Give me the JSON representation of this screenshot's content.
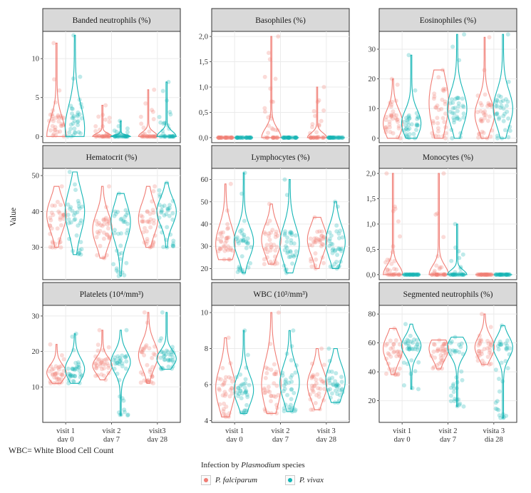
{
  "colors": {
    "falciparum": "#F07C74",
    "vivax": "#14B5B5",
    "strip_bg": "#D9D9D9",
    "panel_border": "#333333",
    "grid": "#EBEBEB"
  },
  "y_axis_label": "Value",
  "footnote": "WBC= White Blood Cell Count",
  "legend": {
    "title_prefix": "Infection by ",
    "title_italic": "Plasmodium",
    "title_suffix": " species",
    "items": [
      {
        "label": "P. falciparum",
        "color": "#F07C74"
      },
      {
        "label": "P. vivax",
        "color": "#14B5B5"
      }
    ]
  },
  "chart_data": [
    {
      "type": "violin",
      "title": "Banded neutrophils (%)",
      "ylim": [
        -0.8,
        13.5
      ],
      "yticks": [
        0,
        5,
        10
      ],
      "ytick_labels": [
        "0",
        "5",
        "10"
      ],
      "categories": [
        "visit 1\nday 0",
        "visit 2\nday 7",
        "visit3\nday 28"
      ],
      "series": [
        {
          "name": "P. falciparum",
          "stats": [
            {
              "min": 0,
              "q1": 0,
              "median": 0,
              "q3": 3,
              "max": 12
            },
            {
              "min": 0,
              "q1": 0,
              "median": 0,
              "q3": 0,
              "max": 4
            },
            {
              "min": 0,
              "q1": 0,
              "median": 0,
              "q3": 0,
              "max": 6
            }
          ]
        },
        {
          "name": "P. vivax",
          "stats": [
            {
              "min": 0,
              "q1": 0,
              "median": 1,
              "q3": 4,
              "max": 13
            },
            {
              "min": 0,
              "q1": 0,
              "median": 0,
              "q3": 0,
              "max": 2
            },
            {
              "min": 0,
              "q1": 0,
              "median": 0,
              "q3": 0,
              "max": 7
            }
          ]
        }
      ]
    },
    {
      "type": "violin",
      "title": "Basophiles (%)",
      "ylim": [
        -0.1,
        2.1
      ],
      "yticks": [
        0,
        0.5,
        1,
        1.5,
        2
      ],
      "ytick_labels": [
        "0,0",
        "0,5",
        "1,0",
        "1,5",
        "2,0"
      ],
      "categories": [
        "visit 1\nday 0",
        "visit 2\nday 7",
        "visit 3\nday 28"
      ],
      "series": [
        {
          "name": "P. falciparum",
          "stats": [
            {
              "min": 0,
              "q1": 0,
              "median": 0,
              "q3": 0,
              "max": 0
            },
            {
              "min": 0,
              "q1": 0,
              "median": 0,
              "q3": 0,
              "max": 2
            },
            {
              "min": 0,
              "q1": 0,
              "median": 0,
              "q3": 0,
              "max": 1
            }
          ]
        },
        {
          "name": "P. vivax",
          "stats": [
            {
              "min": 0,
              "q1": 0,
              "median": 0,
              "q3": 0,
              "max": 0
            },
            {
              "min": 0,
              "q1": 0,
              "median": 0,
              "q3": 0,
              "max": 0
            },
            {
              "min": 0,
              "q1": 0,
              "median": 0,
              "q3": 0,
              "max": 0
            }
          ]
        }
      ]
    },
    {
      "type": "violin",
      "title": "Eosinophiles (%)",
      "ylim": [
        -1.5,
        36
      ],
      "yticks": [
        0,
        10,
        20,
        30
      ],
      "ytick_labels": [
        "0",
        "10",
        "20",
        "30"
      ],
      "categories": [
        "visit 1\nday 0",
        "visit 2\nday 7",
        "visita 3\ndia 28"
      ],
      "series": [
        {
          "name": "P. falciparum",
          "stats": [
            {
              "min": 0,
              "q1": 2,
              "median": 5,
              "q3": 8,
              "max": 20
            },
            {
              "min": 0,
              "q1": 5,
              "median": 12,
              "q3": 17,
              "max": 23
            },
            {
              "min": 0,
              "q1": 5,
              "median": 8,
              "q3": 12,
              "max": 34
            }
          ]
        },
        {
          "name": "P. vivax",
          "stats": [
            {
              "min": 0,
              "q1": 2,
              "median": 5,
              "q3": 8,
              "max": 28
            },
            {
              "min": 0,
              "q1": 6,
              "median": 10,
              "q3": 14,
              "max": 35
            },
            {
              "min": 0,
              "q1": 6,
              "median": 10,
              "q3": 14,
              "max": 35
            }
          ]
        }
      ]
    },
    {
      "type": "violin",
      "title": "Hematocrit (%)",
      "ylim": [
        21,
        52
      ],
      "yticks": [
        30,
        40,
        50
      ],
      "ytick_labels": [
        "30",
        "40",
        "50"
      ],
      "categories": [
        "visit 1\nday 0",
        "visit 2\nday 7",
        "visit3\nday 28"
      ],
      "series": [
        {
          "name": "P. falciparum",
          "stats": [
            {
              "min": 30,
              "q1": 36,
              "median": 39,
              "q3": 42,
              "max": 47
            },
            {
              "min": 27,
              "q1": 32,
              "median": 35,
              "q3": 38,
              "max": 47
            },
            {
              "min": 30,
              "q1": 35,
              "median": 38,
              "q3": 41,
              "max": 47
            }
          ]
        },
        {
          "name": "P. vivax",
          "stats": [
            {
              "min": 28,
              "q1": 36,
              "median": 40,
              "q3": 44,
              "max": 51
            },
            {
              "min": 22,
              "q1": 33,
              "median": 37,
              "q3": 40,
              "max": 45
            },
            {
              "min": 30,
              "q1": 37,
              "median": 40,
              "q3": 42,
              "max": 48
            }
          ]
        }
      ]
    },
    {
      "type": "violin",
      "title": "Lymphocytes (%)",
      "ylim": [
        15,
        65
      ],
      "yticks": [
        20,
        30,
        40,
        50,
        60
      ],
      "ytick_labels": [
        "20",
        "30",
        "40",
        "50",
        "60"
      ],
      "categories": [
        "visit 1\nday 0",
        "visit 2\nday 7",
        "visit 3\nday 28"
      ],
      "series": [
        {
          "name": "P. falciparum",
          "stats": [
            {
              "min": 24,
              "q1": 27,
              "median": 31,
              "q3": 38,
              "max": 58
            },
            {
              "min": 22,
              "q1": 28,
              "median": 33,
              "q3": 37,
              "max": 49
            },
            {
              "min": 20,
              "q1": 28,
              "median": 33,
              "q3": 37,
              "max": 43
            }
          ]
        },
        {
          "name": "P. vivax",
          "stats": [
            {
              "min": 18,
              "q1": 28,
              "median": 32,
              "q3": 37,
              "max": 63
            },
            {
              "min": 18,
              "q1": 26,
              "median": 31,
              "q3": 37,
              "max": 60
            },
            {
              "min": 20,
              "q1": 27,
              "median": 32,
              "q3": 37,
              "max": 50
            }
          ]
        }
      ]
    },
    {
      "type": "violin",
      "title": "Monocytes (%)",
      "ylim": [
        -0.1,
        2.1
      ],
      "yticks": [
        0,
        0.5,
        1,
        1.5,
        2
      ],
      "ytick_labels": [
        "0,0",
        "0,5",
        "1,0",
        "1,5",
        "2,0"
      ],
      "categories": [
        "visit 1\nday 0",
        "visit 2\nday 7",
        "visita 3\ndia 28"
      ],
      "series": [
        {
          "name": "P. falciparum",
          "stats": [
            {
              "min": 0,
              "q1": 0,
              "median": 0,
              "q3": 0,
              "max": 2
            },
            {
              "min": 0,
              "q1": 0,
              "median": 0,
              "q3": 0,
              "max": 2
            },
            {
              "min": 0,
              "q1": 0,
              "median": 0,
              "q3": 0,
              "max": 0
            }
          ]
        },
        {
          "name": "P. vivax",
          "stats": [
            {
              "min": 0,
              "q1": 0,
              "median": 0,
              "q3": 0,
              "max": 0
            },
            {
              "min": 0,
              "q1": 0,
              "median": 0,
              "q3": 0,
              "max": 1
            },
            {
              "min": 0,
              "q1": 0,
              "median": 0,
              "q3": 0,
              "max": 0
            }
          ]
        }
      ]
    },
    {
      "type": "violin",
      "title": "Platelets (10⁴/mm³)",
      "ylim": [
        0,
        33
      ],
      "yticks": [
        10,
        20,
        30
      ],
      "ytick_labels": [
        "10",
        "20",
        "30"
      ],
      "categories": [
        "visit 1\nday 0",
        "visit 2\nday 7",
        "visit3\nday 28"
      ],
      "series": [
        {
          "name": "P. falciparum",
          "stats": [
            {
              "min": 11,
              "q1": 13,
              "median": 14,
              "q3": 16,
              "max": 22
            },
            {
              "min": 12,
              "q1": 15,
              "median": 16,
              "q3": 18,
              "max": 26
            },
            {
              "min": 11,
              "q1": 17,
              "median": 19,
              "q3": 22,
              "max": 31
            }
          ]
        },
        {
          "name": "P. vivax",
          "stats": [
            {
              "min": 11,
              "q1": 13,
              "median": 15,
              "q3": 17,
              "max": 25
            },
            {
              "min": 2,
              "q1": 15,
              "median": 17,
              "q3": 19,
              "max": 26
            },
            {
              "min": 15,
              "q1": 17,
              "median": 18,
              "q3": 20,
              "max": 31
            }
          ]
        }
      ]
    },
    {
      "type": "violin",
      "title": "WBC (10³/mm³)",
      "ylim": [
        3.9,
        10.4
      ],
      "yticks": [
        4,
        6,
        8,
        10
      ],
      "ytick_labels": [
        "4",
        "6",
        "8",
        "10"
      ],
      "categories": [
        "visit 1\nday 0",
        "visit 2\nday 7",
        "visit 3\nday 28"
      ],
      "series": [
        {
          "name": "P. falciparum",
          "stats": [
            {
              "min": 4.2,
              "q1": 5,
              "median": 5.8,
              "q3": 6.5,
              "max": 8.6
            },
            {
              "min": 4.4,
              "q1": 5.3,
              "median": 6,
              "q3": 7,
              "max": 10
            },
            {
              "min": 4.6,
              "q1": 5.5,
              "median": 6,
              "q3": 6.6,
              "max": 8
            }
          ]
        },
        {
          "name": "P. vivax",
          "stats": [
            {
              "min": 4.4,
              "q1": 5.2,
              "median": 5.7,
              "q3": 6.3,
              "max": 9
            },
            {
              "min": 4.5,
              "q1": 5.5,
              "median": 6.1,
              "q3": 6.8,
              "max": 9
            },
            {
              "min": 5,
              "q1": 5.6,
              "median": 6.2,
              "q3": 6.8,
              "max": 8
            }
          ]
        }
      ]
    },
    {
      "type": "violin",
      "title": "Segmented neutrophils  (%)",
      "ylim": [
        5,
        86
      ],
      "yticks": [
        20,
        40,
        60,
        80
      ],
      "ytick_labels": [
        "20",
        "40",
        "60",
        "80"
      ],
      "categories": [
        "visit 1\nday 0",
        "visit 2\nday 7",
        "visita 3\ndia 28"
      ],
      "series": [
        {
          "name": "P. falciparum",
          "stats": [
            {
              "min": 38,
              "q1": 50,
              "median": 56,
              "q3": 62,
              "max": 70
            },
            {
              "min": 42,
              "q1": 50,
              "median": 56,
              "q3": 60,
              "max": 62
            },
            {
              "min": 45,
              "q1": 52,
              "median": 57,
              "q3": 62,
              "max": 80
            }
          ]
        },
        {
          "name": "P. vivax",
          "stats": [
            {
              "min": 28,
              "q1": 54,
              "median": 58,
              "q3": 63,
              "max": 73
            },
            {
              "min": 16,
              "q1": 52,
              "median": 57,
              "q3": 61,
              "max": 64
            },
            {
              "min": 8,
              "q1": 52,
              "median": 57,
              "q3": 62,
              "max": 72
            }
          ]
        }
      ]
    }
  ]
}
